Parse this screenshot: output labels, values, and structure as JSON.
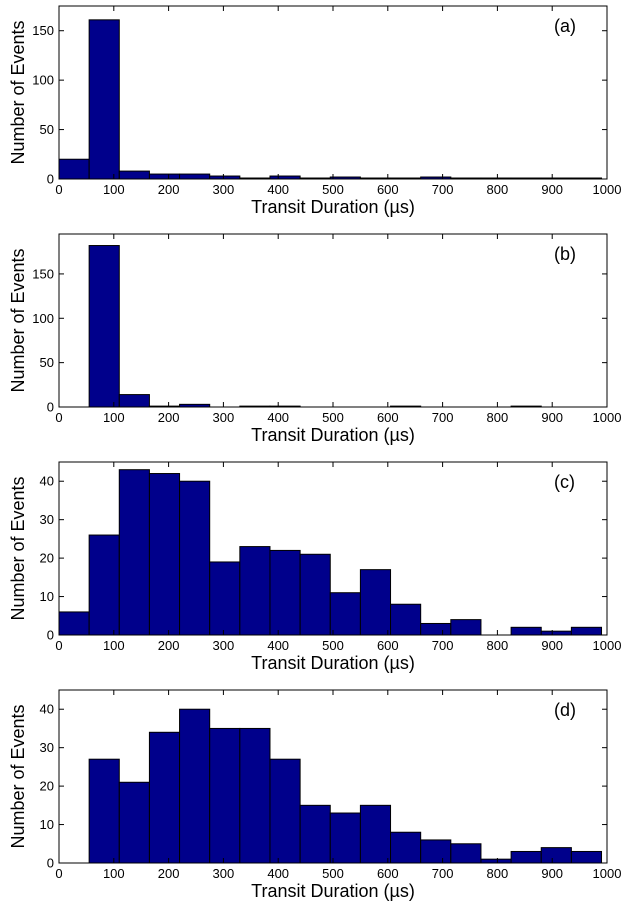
{
  "colors": {
    "bar_fill": "#00008b",
    "bar_edge": "#000000",
    "axes": "#000000",
    "background": "#ffffff"
  },
  "chart_data": [
    {
      "type": "bar",
      "panel_label": "(a)",
      "xlabel": "Transit Duration (µs)",
      "ylabel": "Number of Events",
      "xlim": [
        0,
        1000
      ],
      "ylim": [
        0,
        175
      ],
      "xticks": [
        0,
        100,
        200,
        300,
        400,
        500,
        600,
        700,
        800,
        900,
        1000
      ],
      "yticks": [
        0,
        50,
        100,
        150
      ],
      "bin_edges": [
        0,
        55,
        110,
        165,
        220,
        275,
        330,
        385,
        440,
        495,
        550,
        605,
        660,
        715,
        770,
        825,
        880,
        935,
        990
      ],
      "values": [
        20,
        161,
        8,
        5,
        5,
        3,
        1,
        3,
        1,
        2,
        1,
        1,
        2,
        1,
        1,
        1,
        1,
        1
      ],
      "grid": false
    },
    {
      "type": "bar",
      "panel_label": "(b)",
      "xlabel": "Transit Duration (µs)",
      "ylabel": "Number of Events",
      "xlim": [
        0,
        1000
      ],
      "ylim": [
        0,
        195
      ],
      "xticks": [
        0,
        100,
        200,
        300,
        400,
        500,
        600,
        700,
        800,
        900,
        1000
      ],
      "yticks": [
        0,
        50,
        100,
        150
      ],
      "bin_edges": [
        0,
        55,
        110,
        165,
        220,
        275,
        330,
        385,
        440,
        495,
        550,
        605,
        660,
        715,
        770,
        825,
        880,
        935,
        990
      ],
      "values": [
        0,
        182,
        14,
        1,
        3,
        0,
        1,
        1,
        0,
        0,
        0,
        1,
        0,
        0,
        0,
        1,
        0,
        0
      ],
      "grid": false
    },
    {
      "type": "bar",
      "panel_label": "(c)",
      "xlabel": "Transit Duration (µs)",
      "ylabel": "Number of Events",
      "xlim": [
        0,
        1000
      ],
      "ylim": [
        0,
        45
      ],
      "xticks": [
        0,
        100,
        200,
        300,
        400,
        500,
        600,
        700,
        800,
        900,
        1000
      ],
      "yticks": [
        0,
        10,
        20,
        30,
        40
      ],
      "bin_edges": [
        0,
        55,
        110,
        165,
        220,
        275,
        330,
        385,
        440,
        495,
        550,
        605,
        660,
        715,
        770,
        825,
        880,
        935,
        990
      ],
      "values": [
        6,
        26,
        43,
        42,
        40,
        19,
        23,
        22,
        21,
        11,
        17,
        8,
        3,
        4,
        0,
        2,
        1,
        2
      ],
      "grid": false
    },
    {
      "type": "bar",
      "panel_label": "(d)",
      "xlabel": "Transit Duration (µs)",
      "ylabel": "Number of Events",
      "xlim": [
        0,
        1000
      ],
      "ylim": [
        0,
        45
      ],
      "xticks": [
        0,
        100,
        200,
        300,
        400,
        500,
        600,
        700,
        800,
        900,
        1000
      ],
      "yticks": [
        0,
        10,
        20,
        30,
        40
      ],
      "bin_edges": [
        0,
        55,
        110,
        165,
        220,
        275,
        330,
        385,
        440,
        495,
        550,
        605,
        660,
        715,
        770,
        825,
        880,
        935,
        990
      ],
      "values": [
        0,
        27,
        21,
        34,
        40,
        35,
        35,
        27,
        15,
        13,
        15,
        8,
        6,
        5,
        1,
        3,
        4,
        3
      ],
      "grid": false
    }
  ]
}
